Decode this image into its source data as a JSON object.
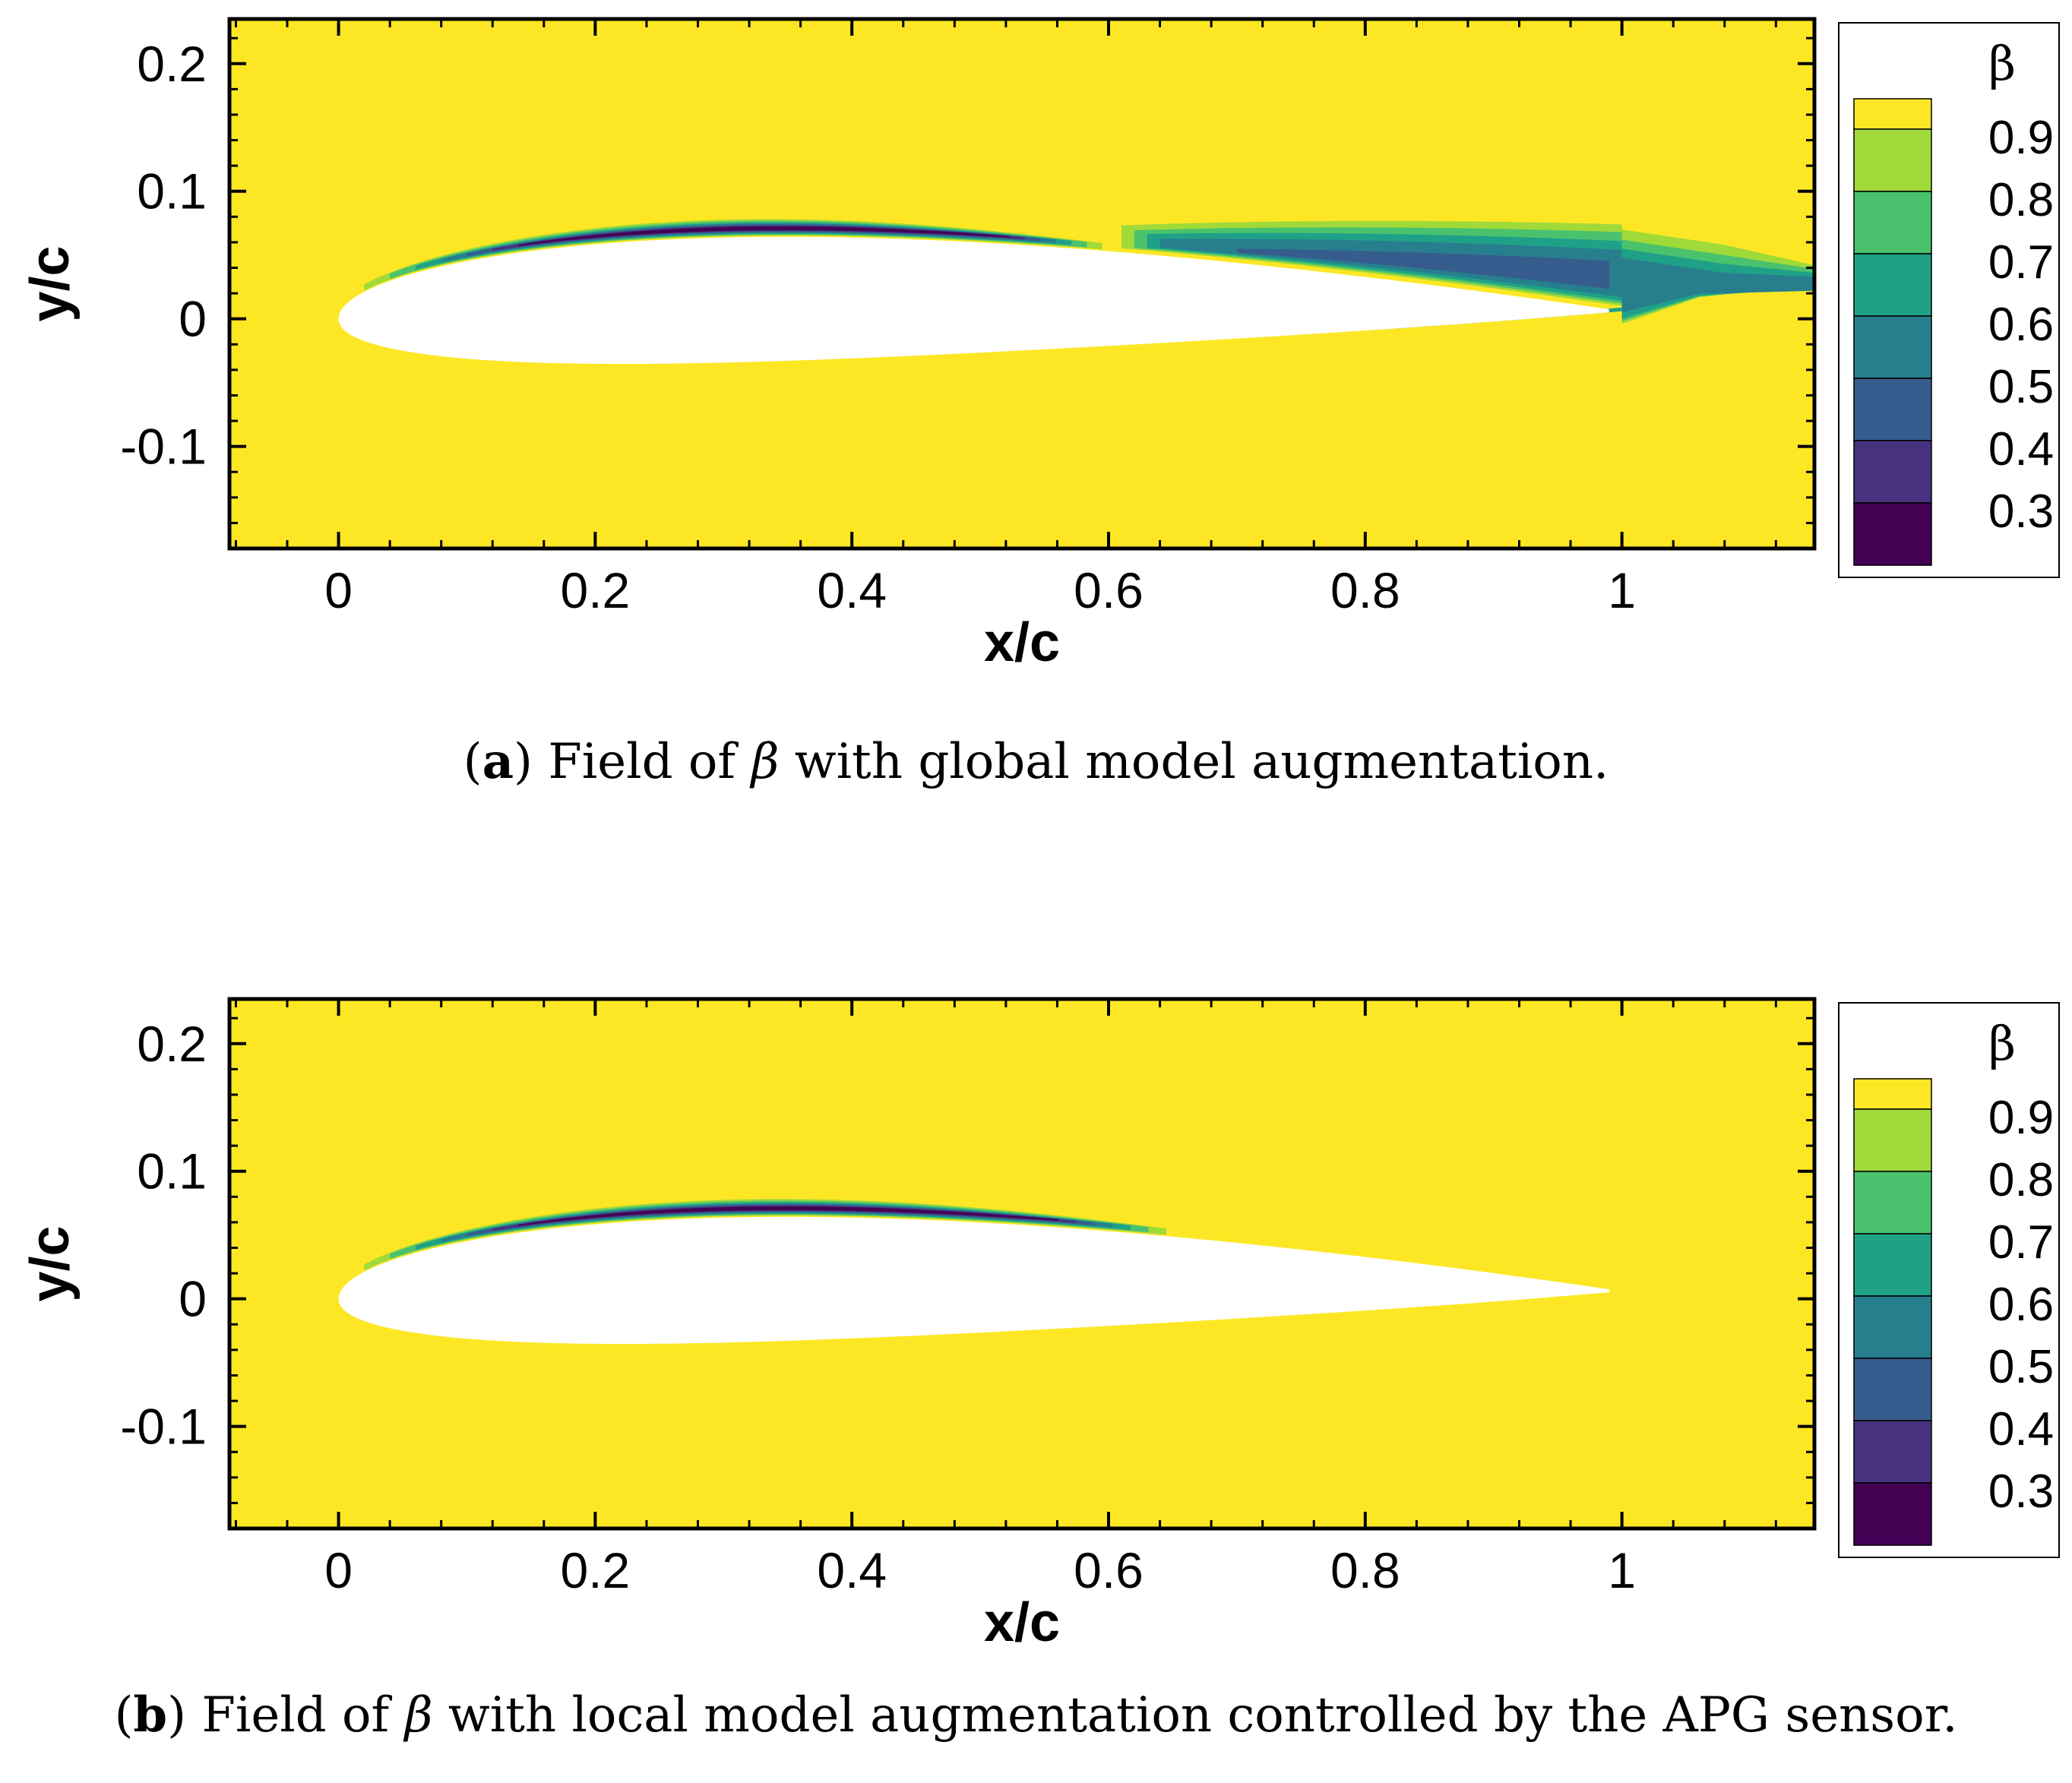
{
  "colors": {
    "levels": [
      "#fde725",
      "#a0da39",
      "#4ac16d",
      "#1fa187",
      "#277f8e",
      "#365c8d",
      "#46327e",
      "#440154"
    ],
    "airfoil": "#ffffff"
  },
  "chart_data": [
    {
      "type": "contour",
      "id": "a",
      "caption_label": "a",
      "caption_pre": " Field of ",
      "caption_symbol": "β",
      "caption_post": " with global model augmentation.",
      "xlabel": "x/c",
      "ylabel": "y/c",
      "xlim": [
        -0.085,
        1.15
      ],
      "ylim": [
        -0.18,
        0.235
      ],
      "xticks": [
        "0",
        "0.2",
        "0.4",
        "0.6",
        "0.8",
        "1"
      ],
      "xtick_values": [
        0,
        0.2,
        0.4,
        0.6,
        0.8,
        1.0
      ],
      "yticks": [
        "0.2",
        "0.1",
        "0",
        "-0.1"
      ],
      "ytick_values": [
        0.2,
        0.1,
        0,
        -0.1
      ],
      "legend": {
        "title": "β",
        "labels": [
          "0.9",
          "0.8",
          "0.7",
          "0.6",
          "0.5",
          "0.4",
          "0.3"
        ],
        "position": "right"
      },
      "regions": [
        {
          "name": "upper-surface-layer",
          "from": 0.02,
          "to": 0.6,
          "peak_x": 0.4,
          "min_level": 7
        },
        {
          "name": "separated-region",
          "from": 0.6,
          "to": 1.15,
          "peak_x": 0.8,
          "min_level": 5
        },
        {
          "name": "wake-region",
          "from": 1.0,
          "to": 1.15,
          "min_level": 4
        }
      ]
    },
    {
      "type": "contour",
      "id": "b",
      "caption_label": "b",
      "caption_pre": " Field of ",
      "caption_symbol": "β",
      "caption_post": " with local model augmentation controlled by the APG sensor.",
      "xlabel": "x/c",
      "ylabel": "y/c",
      "xlim": [
        -0.085,
        1.15
      ],
      "ylim": [
        -0.18,
        0.235
      ],
      "xticks": [
        "0",
        "0.2",
        "0.4",
        "0.6",
        "0.8",
        "1"
      ],
      "xtick_values": [
        0,
        0.2,
        0.4,
        0.6,
        0.8,
        1.0
      ],
      "yticks": [
        "0.2",
        "0.1",
        "0",
        "-0.1"
      ],
      "ytick_values": [
        0.2,
        0.1,
        0,
        -0.1
      ],
      "legend": {
        "title": "β",
        "labels": [
          "0.9",
          "0.8",
          "0.7",
          "0.6",
          "0.5",
          "0.4",
          "0.3"
        ],
        "position": "right"
      },
      "regions": [
        {
          "name": "upper-surface-layer",
          "from": 0.02,
          "to": 0.65,
          "peak_x": 0.45,
          "min_level": 7
        }
      ]
    }
  ]
}
